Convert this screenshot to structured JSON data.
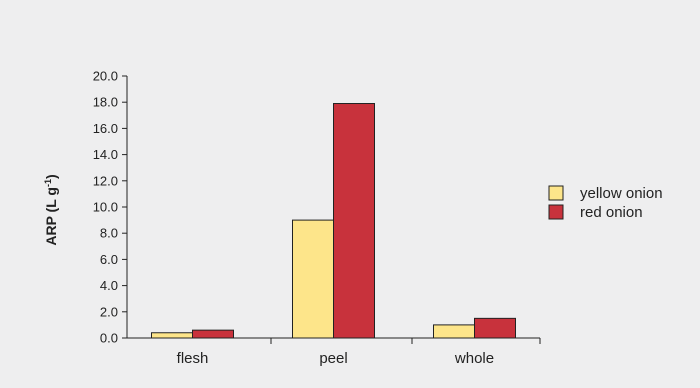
{
  "chart_data": {
    "type": "bar",
    "categories": [
      "flesh",
      "peel",
      "whole"
    ],
    "series": [
      {
        "name": "yellow onion",
        "values": [
          0.4,
          9.0,
          1.0
        ],
        "color": "#fde58a"
      },
      {
        "name": "red onion",
        "values": [
          0.6,
          17.9,
          1.5
        ],
        "color": "#c8323c"
      }
    ],
    "ylabel": {
      "main": "ARP (L g",
      "sup": "-1",
      "close": ")"
    },
    "xlabel": "",
    "ylim": [
      0,
      20
    ],
    "yticks": [
      "0.0",
      "2.0",
      "4.0",
      "6.0",
      "8.0",
      "10.0",
      "12.0",
      "14.0",
      "16.0",
      "18.0",
      "20.0"
    ],
    "grid": false,
    "legend_position": "right",
    "background": "#eeeeef",
    "bar_stroke": "#222222"
  }
}
